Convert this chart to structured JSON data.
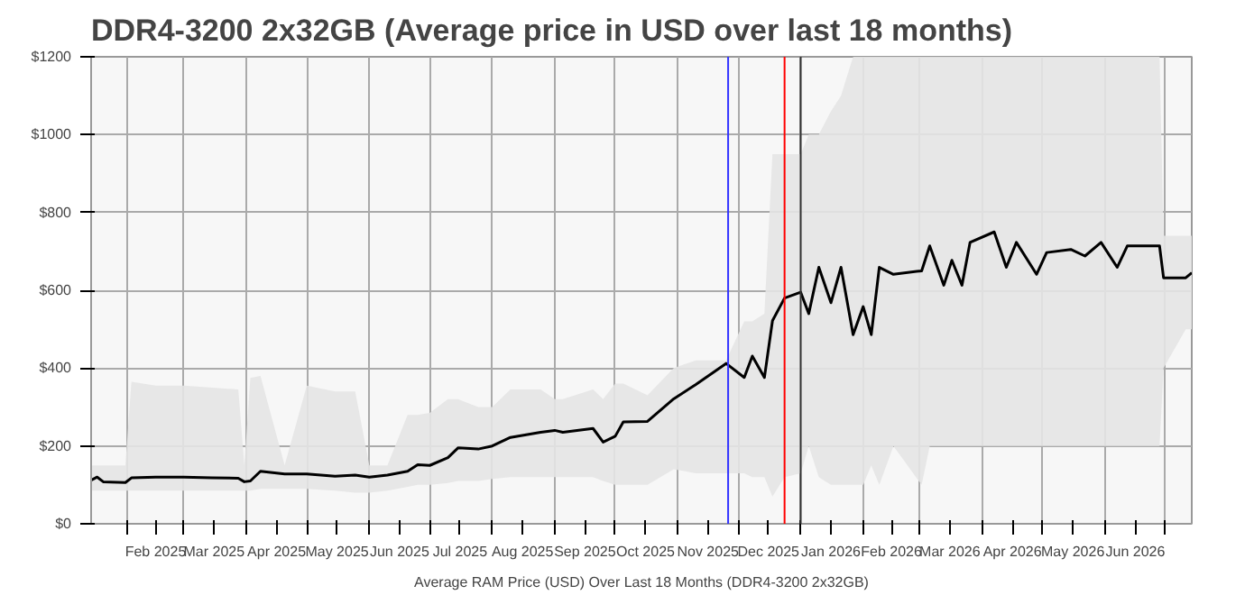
{
  "chart_data": {
    "type": "line",
    "title": "DDR4-3200 2x32GB (Average price in USD over last 18 months)",
    "xlabel": "Average RAM Price (USD) Over Last 18 Months (DDR4-3200 2x32GB)",
    "x": [
      "2025-01-14",
      "2025-01-17",
      "2025-01-20",
      "2025-01-31",
      "2025-02-03",
      "2025-02-15",
      "2025-03-01",
      "2025-03-15",
      "2025-03-28",
      "2025-03-31",
      "2025-04-03",
      "2025-04-08",
      "2025-04-20",
      "2025-05-01",
      "2025-05-15",
      "2025-05-25",
      "2025-06-01",
      "2025-06-10",
      "2025-06-20",
      "2025-06-25",
      "2025-07-01",
      "2025-07-10",
      "2025-07-15",
      "2025-07-25",
      "2025-08-01",
      "2025-08-10",
      "2025-08-25",
      "2025-09-01",
      "2025-09-05",
      "2025-09-20",
      "2025-09-25",
      "2025-10-01",
      "2025-10-05",
      "2025-10-17",
      "2025-10-30",
      "2025-11-10",
      "2025-11-25",
      "2025-12-04",
      "2025-12-08",
      "2025-12-14",
      "2025-12-18",
      "2025-12-24",
      "2026-01-01",
      "2026-01-05",
      "2026-01-10",
      "2026-01-16",
      "2026-01-21",
      "2026-01-27",
      "2026-02-01",
      "2026-02-05",
      "2026-02-09",
      "2026-02-16",
      "2026-03-02",
      "2026-03-06",
      "2026-03-13",
      "2026-03-17",
      "2026-03-22",
      "2026-03-26",
      "2026-04-07",
      "2026-04-13",
      "2026-04-18",
      "2026-04-28",
      "2026-05-03",
      "2026-05-15",
      "2026-05-22",
      "2026-05-30",
      "2026-06-07",
      "2026-06-12",
      "2026-06-28",
      "2026-06-30",
      "2026-07-11",
      "2026-07-14"
    ],
    "series": [
      {
        "color": "#000000",
        "values": [
          112,
          120,
          108,
          106,
          118,
          120,
          120,
          118,
          117,
          108,
          110,
          135,
          128,
          128,
          122,
          125,
          120,
          125,
          135,
          152,
          150,
          170,
          195,
          192,
          200,
          222,
          235,
          240,
          235,
          245,
          210,
          225,
          262,
          263,
          321,
          358,
          412,
          376,
          431,
          376,
          522,
          580,
          595,
          540,
          659,
          568,
          659,
          486,
          558,
          486,
          659,
          641,
          650,
          714,
          613,
          677,
          613,
          723,
          750,
          659,
          723,
          641,
          697,
          705,
          688,
          723,
          659,
          714,
          714,
          632,
          632,
          645
        ],
        "lower": [
          85,
          85,
          85,
          85,
          85,
          85,
          85,
          85,
          85,
          85,
          85,
          90,
          90,
          90,
          85,
          80,
          80,
          85,
          95,
          100,
          100,
          105,
          110,
          110,
          115,
          120,
          120,
          120,
          120,
          120,
          110,
          100,
          100,
          100,
          140,
          130,
          130,
          130,
          120,
          120,
          70,
          120,
          130,
          200,
          120,
          100,
          100,
          100,
          100,
          150,
          100,
          200,
          100,
          200,
          200,
          200,
          200,
          200,
          200,
          200,
          200,
          200,
          200,
          200,
          200,
          200,
          200,
          200,
          200,
          400,
          500,
          500
        ],
        "upper": [
          150,
          150,
          150,
          150,
          365,
          355,
          355,
          350,
          345,
          150,
          375,
          380,
          150,
          355,
          340,
          340,
          150,
          150,
          280,
          280,
          285,
          320,
          320,
          300,
          300,
          345,
          345,
          320,
          320,
          345,
          320,
          360,
          360,
          330,
          400,
          420,
          420,
          520,
          520,
          540,
          950,
          950,
          950,
          1000,
          1000,
          1060,
          1100,
          1200,
          1200,
          1200,
          1200,
          1200,
          1200,
          1200,
          1200,
          1200,
          1200,
          1200,
          1200,
          1200,
          1200,
          1200,
          1200,
          1200,
          1200,
          1200,
          1200,
          1200,
          1200,
          740,
          740,
          740
        ]
      }
    ],
    "xlim": [
      "2025-01-14",
      "2026-07-14"
    ],
    "xticks": [
      {
        "value": "2025-02-01",
        "label": null
      },
      {
        "value": "2025-02-15",
        "label": "Feb 2025"
      },
      {
        "value": "2025-03-01",
        "label": null
      },
      {
        "value": "2025-03-16",
        "label": "Mar 2025"
      },
      {
        "value": "2025-04-01",
        "label": null
      },
      {
        "value": "2025-04-16",
        "label": "Apr 2025"
      },
      {
        "value": "2025-05-01",
        "label": null
      },
      {
        "value": "2025-05-16",
        "label": "May 2025"
      },
      {
        "value": "2025-06-01",
        "label": null
      },
      {
        "value": "2025-06-16",
        "label": "Jun 2025"
      },
      {
        "value": "2025-07-01",
        "label": null
      },
      {
        "value": "2025-07-16",
        "label": "Jul 2025"
      },
      {
        "value": "2025-08-01",
        "label": null
      },
      {
        "value": "2025-08-16",
        "label": "Aug 2025"
      },
      {
        "value": "2025-09-01",
        "label": null
      },
      {
        "value": "2025-09-16",
        "label": "Sep 2025"
      },
      {
        "value": "2025-10-01",
        "label": null
      },
      {
        "value": "2025-10-16",
        "label": "Oct 2025"
      },
      {
        "value": "2025-11-01",
        "label": null
      },
      {
        "value": "2025-11-16",
        "label": "Nov 2025"
      },
      {
        "value": "2025-12-01",
        "label": null
      },
      {
        "value": "2025-12-16",
        "label": "Dec 2025"
      },
      {
        "value": "2026-01-01",
        "label": null
      },
      {
        "value": "2026-01-16",
        "label": "Jan 2026"
      },
      {
        "value": "2026-02-01",
        "label": null
      },
      {
        "value": "2026-02-15",
        "label": "Feb 2026"
      },
      {
        "value": "2026-03-01",
        "label": null
      },
      {
        "value": "2026-03-16",
        "label": "Mar 2026"
      },
      {
        "value": "2026-04-01",
        "label": null
      },
      {
        "value": "2026-04-16",
        "label": "Apr 2026"
      },
      {
        "value": "2026-05-01",
        "label": null
      },
      {
        "value": "2026-05-16",
        "label": "May 2026"
      },
      {
        "value": "2026-06-01",
        "label": null
      },
      {
        "value": "2026-06-16",
        "label": "Jun 2026"
      },
      {
        "value": "2026-07-01",
        "label": null
      }
    ],
    "ylim": [
      0,
      1200
    ],
    "yticks": [
      {
        "value": 0,
        "label": "$0"
      },
      {
        "value": 200,
        "label": "$200"
      },
      {
        "value": 400,
        "label": "$400"
      },
      {
        "value": 600,
        "label": "$600"
      },
      {
        "value": 800,
        "label": "$800"
      },
      {
        "value": 1000,
        "label": "$1000"
      },
      {
        "value": 1200,
        "label": "$1200"
      }
    ],
    "ref_lines": [
      {
        "axis": "x",
        "value": "2025-11-26",
        "color": "#3333ff"
      },
      {
        "axis": "x",
        "value": "2025-12-24",
        "color": "#ff0000"
      },
      {
        "axis": "x",
        "value": "2026-01-01",
        "color": "#333333"
      }
    ],
    "grid": true,
    "marker": "none",
    "line_style": "solid"
  }
}
